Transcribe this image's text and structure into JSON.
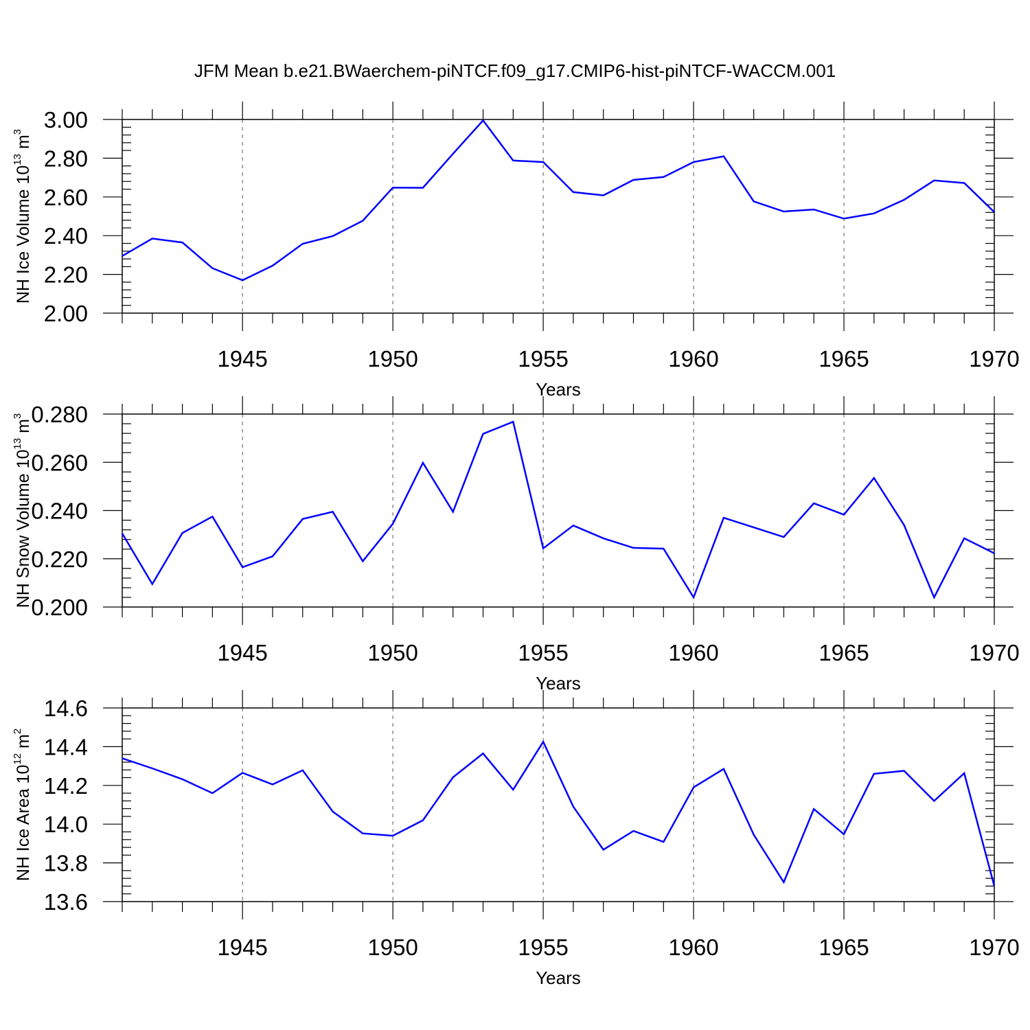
{
  "title": "JFM Mean b.e21.BWaerchem-piNTCF.f09_g17.CMIP6-hist-piNTCF-WACCM.001",
  "colors": {
    "series": "#0000ff",
    "axes": "#000000"
  },
  "chart_data": [
    {
      "type": "line",
      "ylabel": {
        "main": "NH Ice Volume 10",
        "exp": "13",
        "unit": " m",
        "unit_exp": "3"
      },
      "xlabel": "Years",
      "x_ticks": [
        "1945",
        "1950",
        "1955",
        "1960",
        "1965",
        "1970"
      ],
      "y_ticks": [
        "2.00",
        "2.20",
        "2.40",
        "2.60",
        "2.80",
        "3.00"
      ],
      "xlim": [
        1941,
        1970
      ],
      "ylim": [
        2.0,
        3.0
      ],
      "grid": "vertical dashed at major x ticks",
      "x": [
        1941,
        1942,
        1943,
        1944,
        1945,
        1946,
        1947,
        1948,
        1949,
        1950,
        1951,
        1952,
        1953,
        1954,
        1955,
        1956,
        1957,
        1958,
        1959,
        1960,
        1961,
        1962,
        1963,
        1964,
        1965,
        1966,
        1967,
        1968,
        1969,
        1970
      ],
      "values": [
        2.295,
        2.385,
        2.365,
        2.232,
        2.17,
        2.245,
        2.358,
        2.398,
        2.477,
        2.648,
        2.647,
        2.823,
        2.995,
        2.788,
        2.78,
        2.625,
        2.608,
        2.688,
        2.703,
        2.78,
        2.81,
        2.577,
        2.525,
        2.535,
        2.488,
        2.515,
        2.585,
        2.685,
        2.672,
        2.522
      ]
    },
    {
      "type": "line",
      "ylabel": {
        "main": "NH Snow Volume 10",
        "exp": "13",
        "unit": " m",
        "unit_exp": "3"
      },
      "xlabel": "Years",
      "x_ticks": [
        "1945",
        "1950",
        "1955",
        "1960",
        "1965",
        "1970"
      ],
      "y_ticks": [
        "0.200",
        "0.220",
        "0.240",
        "0.260",
        "0.280"
      ],
      "xlim": [
        1941,
        1970
      ],
      "ylim": [
        0.2,
        0.28
      ],
      "grid": "vertical dashed at major x ticks",
      "x": [
        1941,
        1942,
        1943,
        1944,
        1945,
        1946,
        1947,
        1948,
        1949,
        1950,
        1951,
        1952,
        1953,
        1954,
        1955,
        1956,
        1957,
        1958,
        1959,
        1960,
        1961,
        1962,
        1963,
        1964,
        1965,
        1966,
        1967,
        1968,
        1969,
        1970
      ],
      "values": [
        0.2305,
        0.2095,
        0.2307,
        0.2375,
        0.2165,
        0.221,
        0.2365,
        0.2395,
        0.219,
        0.2345,
        0.2598,
        0.2395,
        0.2718,
        0.2768,
        0.2243,
        0.2338,
        0.2285,
        0.2245,
        0.2242,
        0.204,
        0.237,
        0.233,
        0.229,
        0.243,
        0.2383,
        0.2535,
        0.234,
        0.204,
        0.2285,
        0.2223
      ]
    },
    {
      "type": "line",
      "ylabel": {
        "main": "NH Ice Area 10",
        "exp": "12",
        "unit": " m",
        "unit_exp": "2"
      },
      "xlabel": "Years",
      "x_ticks": [
        "1945",
        "1950",
        "1955",
        "1960",
        "1965",
        "1970"
      ],
      "y_ticks": [
        "13.6",
        "13.8",
        "14.0",
        "14.2",
        "14.4",
        "14.6"
      ],
      "xlim": [
        1941,
        1970
      ],
      "ylim": [
        13.6,
        14.6
      ],
      "grid": "vertical dashed at major x ticks",
      "x": [
        1941,
        1942,
        1943,
        1944,
        1945,
        1946,
        1947,
        1948,
        1949,
        1950,
        1951,
        1952,
        1953,
        1954,
        1955,
        1956,
        1957,
        1958,
        1959,
        1960,
        1961,
        1962,
        1963,
        1964,
        1965,
        1966,
        1967,
        1968,
        1969,
        1970
      ],
      "values": [
        14.34,
        14.288,
        14.232,
        14.16,
        14.265,
        14.205,
        14.278,
        14.065,
        13.952,
        13.94,
        14.02,
        14.242,
        14.365,
        14.178,
        14.425,
        14.09,
        13.868,
        13.965,
        13.908,
        14.19,
        14.285,
        13.945,
        13.7,
        14.078,
        13.948,
        14.26,
        14.275,
        14.12,
        14.263,
        13.68
      ]
    }
  ]
}
